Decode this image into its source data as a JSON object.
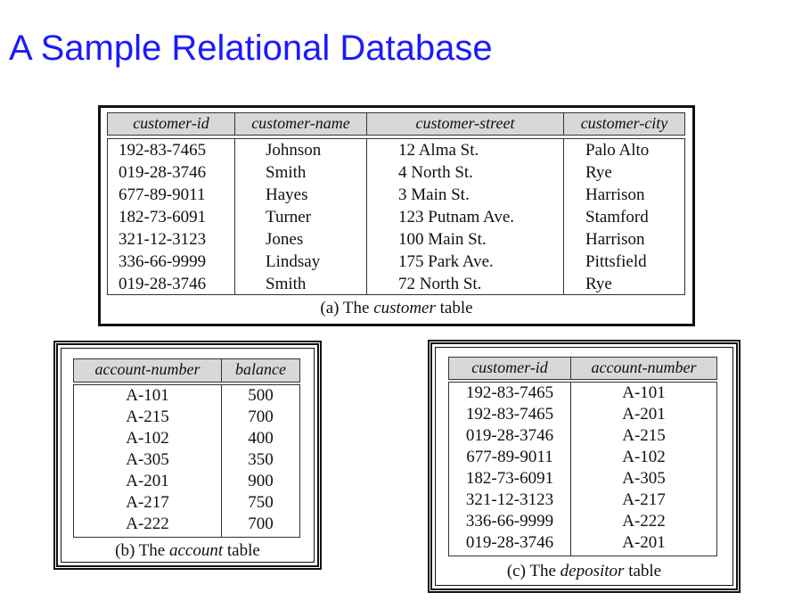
{
  "slide": {
    "title": "A Sample Relational Database"
  },
  "customer_table": {
    "headers": [
      "customer-id",
      "customer-name",
      "customer-street",
      "customer-city"
    ],
    "rows": [
      [
        "192-83-7465",
        "Johnson",
        "12 Alma St.",
        "Palo Alto"
      ],
      [
        "019-28-3746",
        "Smith",
        "4 North St.",
        "Rye"
      ],
      [
        "677-89-9011",
        "Hayes",
        "3 Main St.",
        "Harrison"
      ],
      [
        "182-73-6091",
        "Turner",
        "123 Putnam Ave.",
        "Stamford"
      ],
      [
        "321-12-3123",
        "Jones",
        "100 Main St.",
        "Harrison"
      ],
      [
        "336-66-9999",
        "Lindsay",
        "175 Park Ave.",
        "Pittsfield"
      ],
      [
        "019-28-3746",
        "Smith",
        "72 North St.",
        "Rye"
      ]
    ],
    "caption_prefix": "(a) The ",
    "caption_emph": "customer",
    "caption_suffix": " table"
  },
  "account_table": {
    "headers": [
      "account-number",
      "balance"
    ],
    "rows": [
      [
        "A-101",
        "500"
      ],
      [
        "A-215",
        "700"
      ],
      [
        "A-102",
        "400"
      ],
      [
        "A-305",
        "350"
      ],
      [
        "A-201",
        "900"
      ],
      [
        "A-217",
        "750"
      ],
      [
        "A-222",
        "700"
      ]
    ],
    "caption_prefix": "(b) The ",
    "caption_emph": "account",
    "caption_suffix": " table"
  },
  "depositor_table": {
    "headers": [
      "customer-id",
      "account-number"
    ],
    "rows": [
      [
        "192-83-7465",
        "A-101"
      ],
      [
        "192-83-7465",
        "A-201"
      ],
      [
        "019-28-3746",
        "A-215"
      ],
      [
        "677-89-9011",
        "A-102"
      ],
      [
        "182-73-6091",
        "A-305"
      ],
      [
        "321-12-3123",
        "A-217"
      ],
      [
        "336-66-9999",
        "A-222"
      ],
      [
        "019-28-3746",
        "A-201"
      ]
    ],
    "caption_prefix": "(c) The ",
    "caption_emph": "depositor",
    "caption_suffix": " table"
  },
  "colors": {
    "title": "#1a1aff",
    "header_fill": "#d8d8d8",
    "border": "#111111"
  }
}
